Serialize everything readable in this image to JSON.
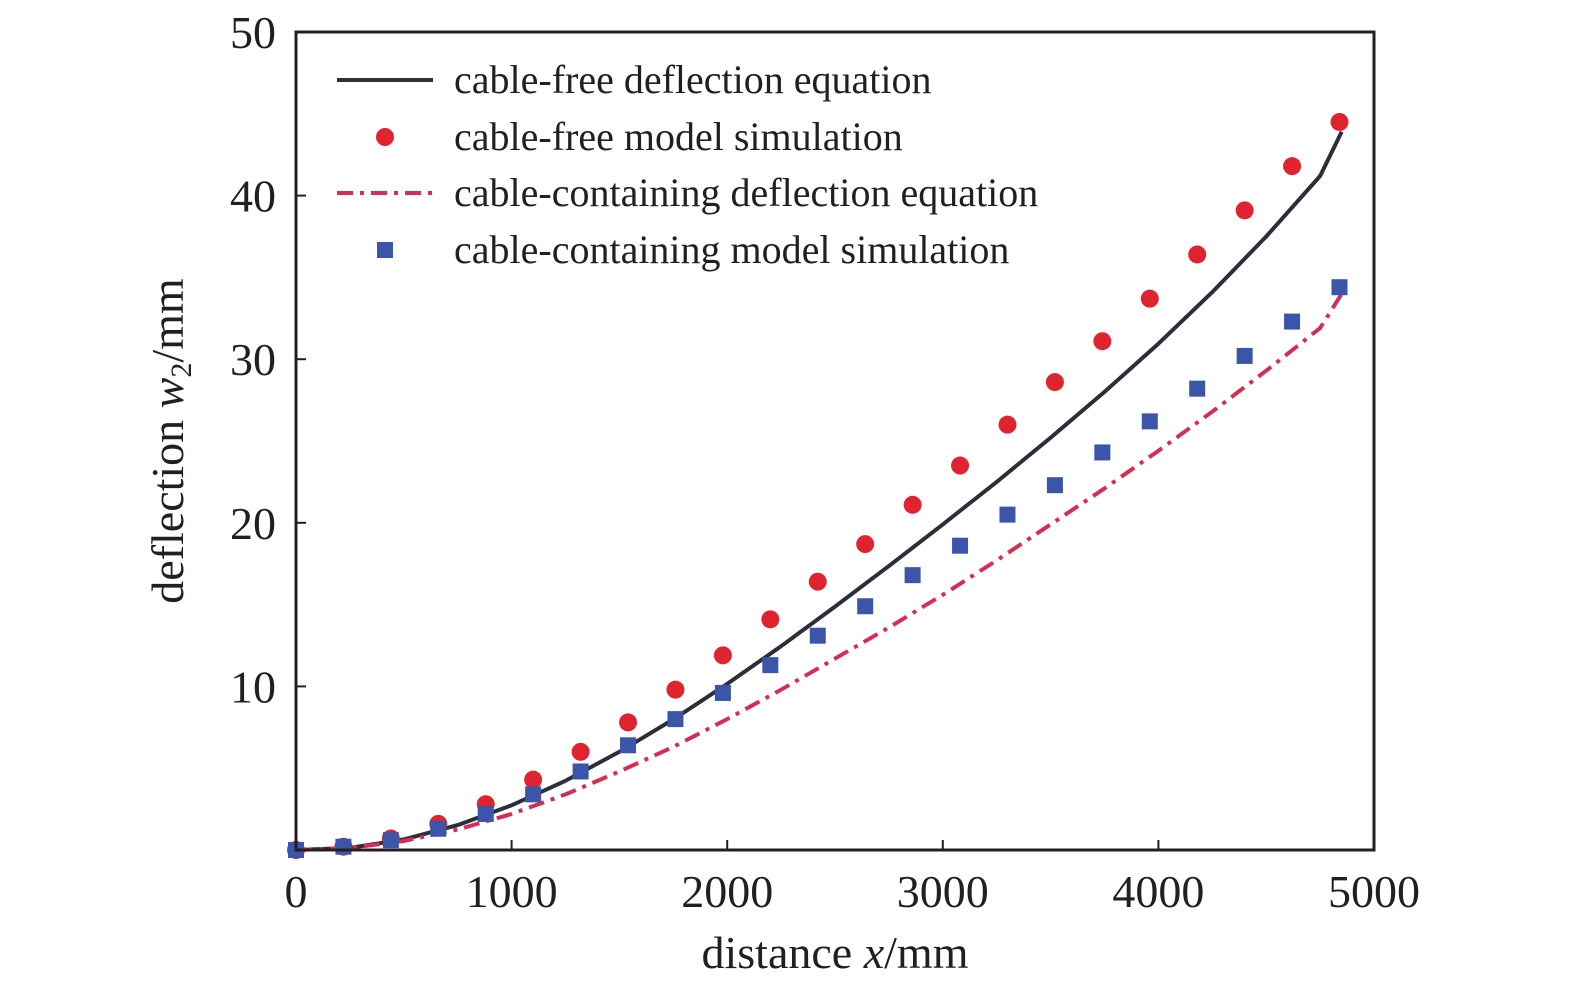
{
  "chart_data": {
    "type": "line",
    "x_axis": {
      "label_prefix": "distance ",
      "label_var": "x",
      "label_unit": "/mm",
      "range": [
        0,
        5000
      ],
      "ticks": [
        "0",
        "1000",
        "2000",
        "3000",
        "4000",
        "5000"
      ],
      "tick_values": [
        0,
        1000,
        2000,
        3000,
        4000,
        5000
      ]
    },
    "y_axis": {
      "label_prefix": "deflection ",
      "label_var": "w",
      "label_sub": "2",
      "label_unit": "/mm",
      "range": [
        0,
        50
      ],
      "ticks": [
        "10",
        "20",
        "30",
        "40",
        "50"
      ],
      "tick_values": [
        10,
        20,
        30,
        40,
        50
      ]
    },
    "grid": false,
    "legend_position": "top-left",
    "series": [
      {
        "name": "cable-free deflection equation",
        "kind": "line",
        "style": "solid",
        "color": "#2b2f3a",
        "x": [
          0,
          250,
          500,
          750,
          1000,
          1250,
          1500,
          1750,
          2000,
          2250,
          2500,
          2750,
          3000,
          3250,
          3500,
          3750,
          4000,
          4250,
          4500,
          4750,
          4850
        ],
        "y": [
          0.0,
          0.13,
          0.65,
          1.52,
          2.73,
          4.23,
          6.0,
          7.98,
          10.15,
          12.46,
          14.88,
          17.36,
          19.9,
          22.5,
          25.2,
          28.0,
          30.95,
          34.1,
          37.5,
          41.2,
          43.9
        ]
      },
      {
        "name": "cable-free model simulation",
        "kind": "scatter",
        "marker": "circle",
        "color": "#e0242f",
        "x": [
          0,
          220,
          440,
          660,
          880,
          1100,
          1320,
          1540,
          1760,
          1980,
          2200,
          2420,
          2640,
          2860,
          3080,
          3300,
          3520,
          3740,
          3960,
          4180,
          4400,
          4620,
          4840
        ],
        "y": [
          0.0,
          0.2,
          0.7,
          1.6,
          2.8,
          4.3,
          6.0,
          7.8,
          9.8,
          11.9,
          14.1,
          16.4,
          18.7,
          21.1,
          23.5,
          26.0,
          28.6,
          31.1,
          33.7,
          36.4,
          39.1,
          41.8,
          44.5
        ]
      },
      {
        "name": "cable-containing deflection equation",
        "kind": "line",
        "style": "dashdot",
        "color": "#d42f52",
        "x": [
          0,
          250,
          500,
          750,
          1000,
          1250,
          1500,
          1750,
          2000,
          2250,
          2500,
          2750,
          3000,
          3250,
          3500,
          3750,
          4000,
          4250,
          4500,
          4750,
          4850
        ],
        "y": [
          0.0,
          0.12,
          0.55,
          1.25,
          2.2,
          3.4,
          4.8,
          6.3,
          8.0,
          9.8,
          11.7,
          13.6,
          15.6,
          17.7,
          19.9,
          22.1,
          24.4,
          26.8,
          29.3,
          31.9,
          34.0
        ]
      },
      {
        "name": "cable-containing model simulation",
        "kind": "scatter",
        "marker": "square",
        "color": "#3b55a8",
        "x": [
          0,
          220,
          440,
          660,
          880,
          1100,
          1320,
          1540,
          1760,
          1980,
          2200,
          2420,
          2640,
          2860,
          3080,
          3300,
          3520,
          3740,
          3960,
          4180,
          4400,
          4620,
          4840
        ],
        "y": [
          0.0,
          0.2,
          0.6,
          1.3,
          2.2,
          3.4,
          4.8,
          6.4,
          8.0,
          9.6,
          11.3,
          13.1,
          14.9,
          16.8,
          18.6,
          20.5,
          22.3,
          24.3,
          26.2,
          28.2,
          30.2,
          32.3,
          34.4
        ]
      }
    ]
  }
}
